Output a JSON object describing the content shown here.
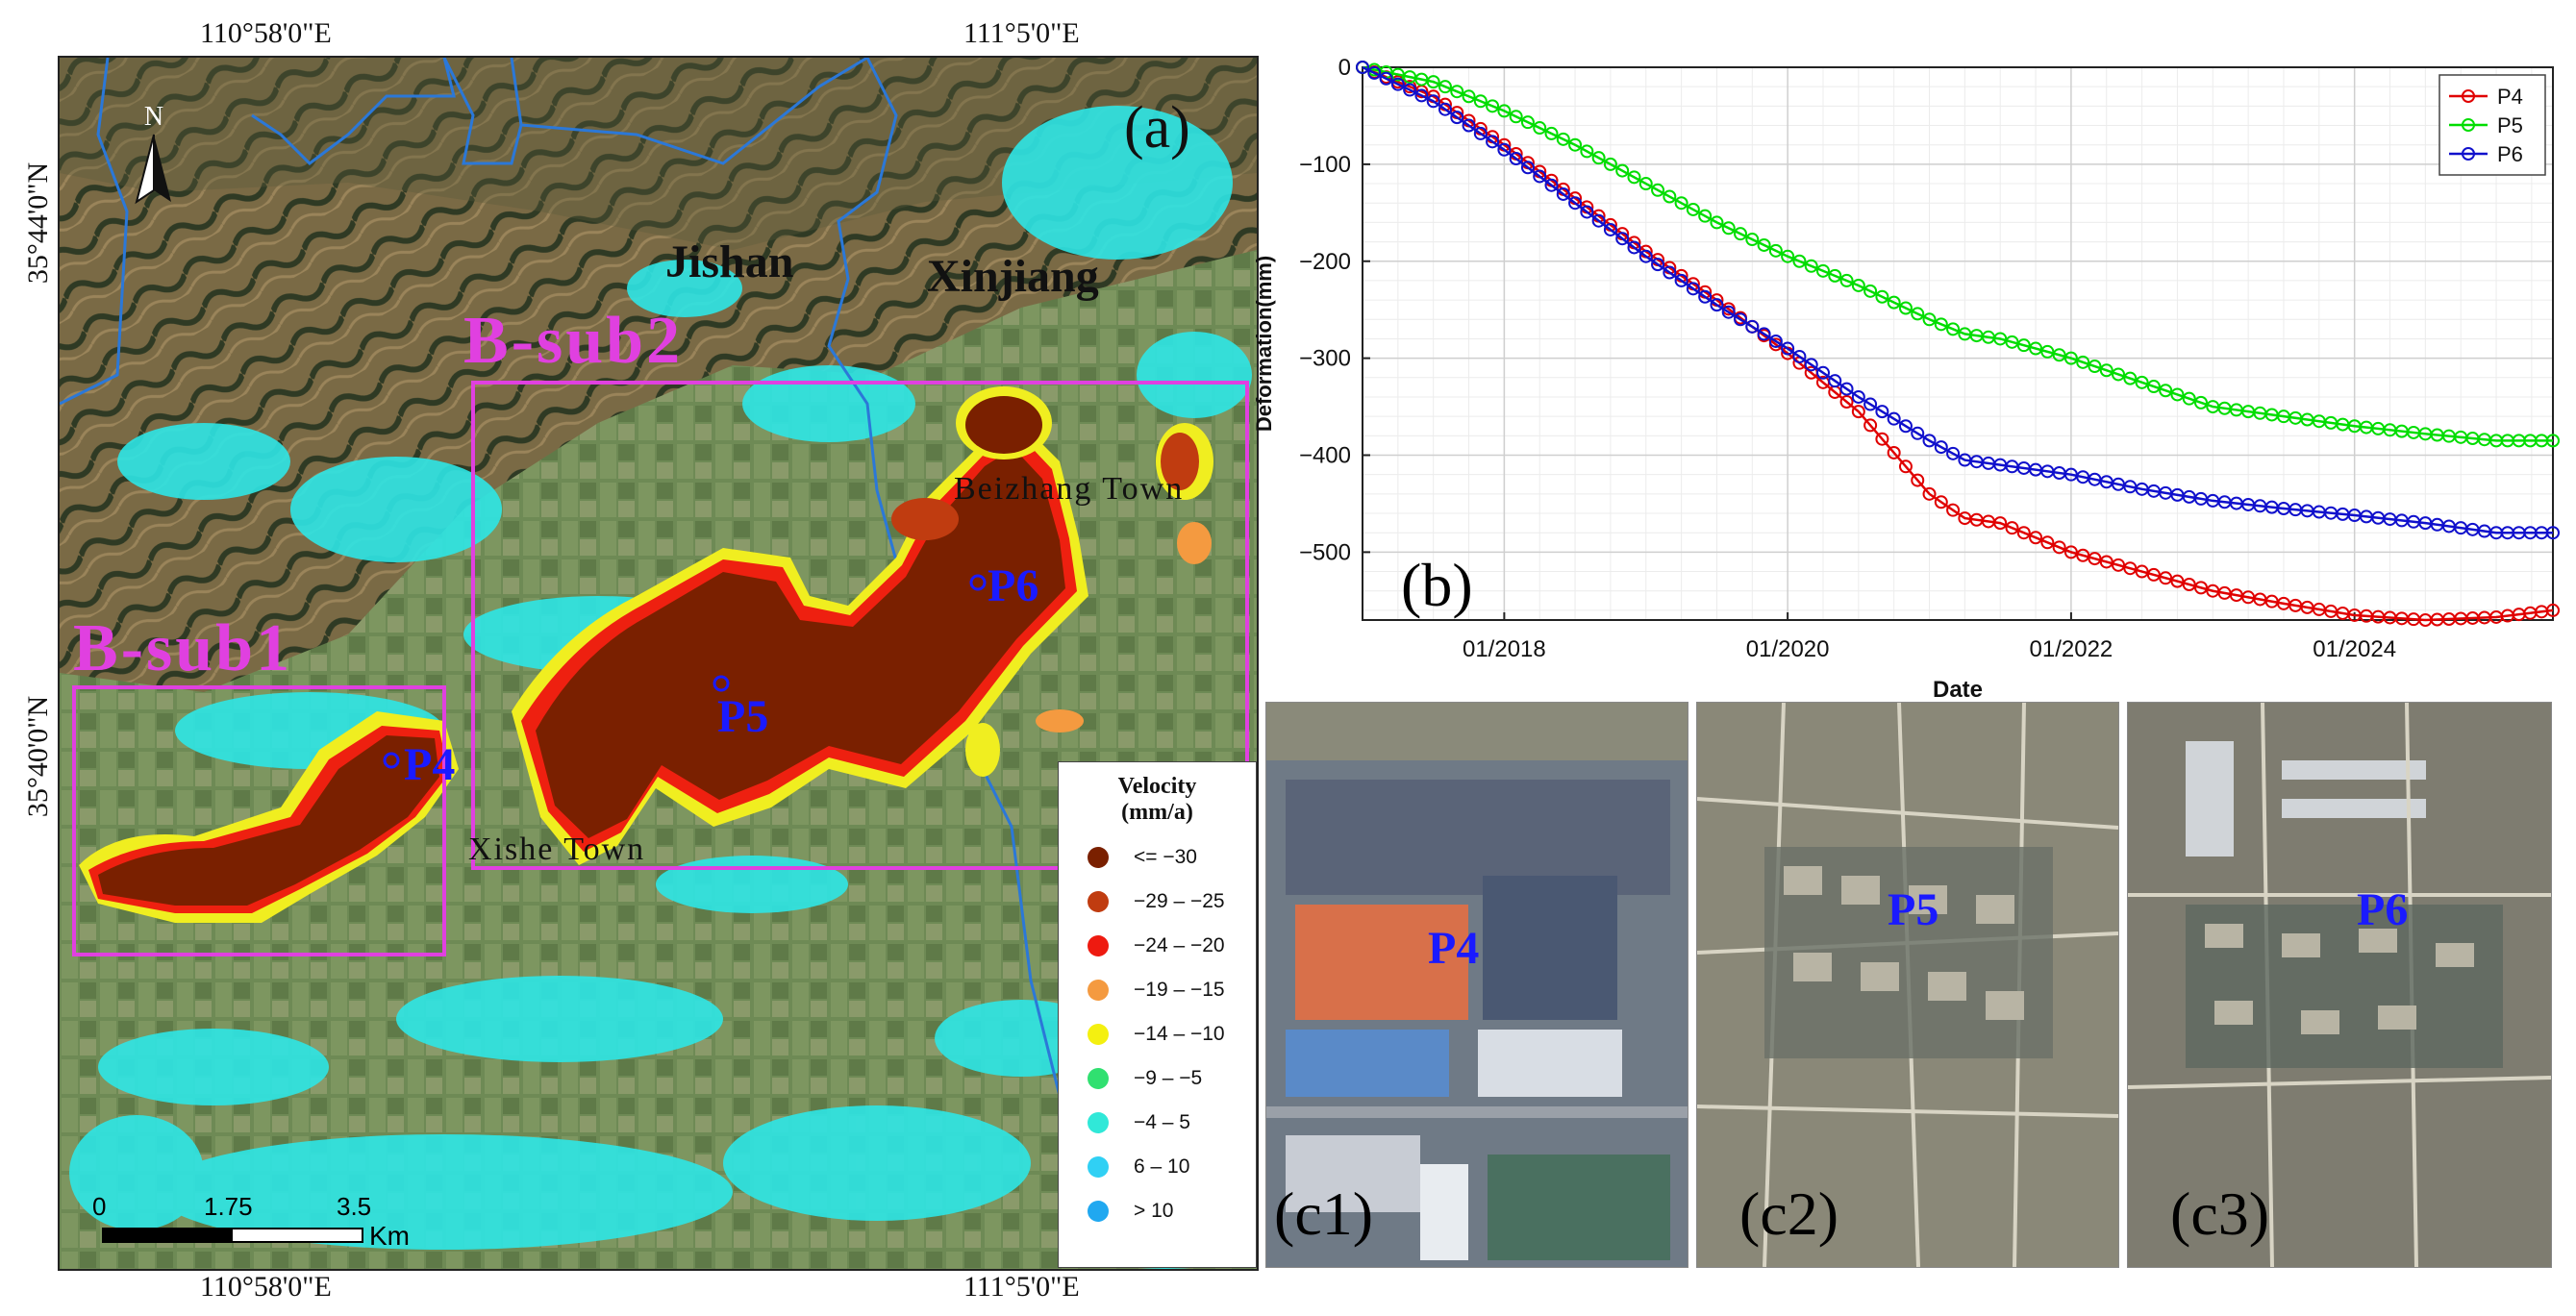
{
  "map": {
    "panel_label": "(a)",
    "north_label": "N",
    "coords": {
      "top_left_lon": "110°58'0\"E",
      "top_right_lon": "111°5'0\"E",
      "bottom_left_lon": "110°58'0\"E",
      "bottom_right_lon": "111°5'0\"E",
      "upper_lat": "35°44'0\"N",
      "lower_lat": "35°40'0\"N"
    },
    "places": {
      "jishan": "Jishan",
      "xinjiang": "Xinjiang",
      "beizhang": "Beizhang Town",
      "xishe": "Xishe Town"
    },
    "subareas": {
      "sub1": "B-sub1",
      "sub2": "B-sub2"
    },
    "points": {
      "p4": "P4",
      "p5": "P5",
      "p6": "P6"
    },
    "scalebar": {
      "t0": "0",
      "t1": "1.75",
      "t2": "3.5",
      "unit": "Km"
    },
    "legend": {
      "title_line1": "Velocity",
      "title_line2": "(mm/a)",
      "items": [
        {
          "label": "<= −30",
          "color": "#7a2000"
        },
        {
          "label": "−29 – −25",
          "color": "#c03c10"
        },
        {
          "label": "−24 – −20",
          "color": "#ee1a10"
        },
        {
          "label": "−19 – −15",
          "color": "#f49a40"
        },
        {
          "label": "−14 – −10",
          "color": "#f4f010"
        },
        {
          "label": "−9 – −5",
          "color": "#30e070"
        },
        {
          "label": "−4 – 5",
          "color": "#30e8d8"
        },
        {
          "label": "6 – 10",
          "color": "#30d0f4"
        },
        {
          "label": "> 10",
          "color": "#20a8f0"
        }
      ]
    }
  },
  "chart_data": {
    "type": "line",
    "panel_label": "(b)",
    "title": "",
    "xlabel": "Date",
    "ylabel": "Deformation(mm)",
    "xlim": [
      2017.0,
      2025.4
    ],
    "ylim": [
      -570,
      0
    ],
    "x_ticks": [
      2018,
      2020,
      2022,
      2024
    ],
    "x_tick_labels": [
      "01/2018",
      "01/2020",
      "01/2022",
      "01/2024"
    ],
    "y_ticks": [
      0,
      -100,
      -200,
      -300,
      -400,
      -500
    ],
    "y_tick_labels": [
      "0",
      "−100",
      "−200",
      "−300",
      "−400",
      "−500"
    ],
    "grid": true,
    "legend_position": "top-right",
    "x": [
      2017.0,
      2017.5,
      2018.0,
      2018.5,
      2019.0,
      2019.5,
      2020.0,
      2020.5,
      2021.0,
      2021.25,
      2021.5,
      2022.0,
      2022.5,
      2023.0,
      2023.5,
      2024.0,
      2024.5,
      2025.0,
      2025.4
    ],
    "series": [
      {
        "name": "P4",
        "color": "#e00000",
        "values": [
          0,
          -30,
          -80,
          -135,
          -190,
          -240,
          -295,
          -355,
          -440,
          -465,
          -470,
          -500,
          -520,
          -540,
          -553,
          -565,
          -570,
          -567,
          -560
        ]
      },
      {
        "name": "P5",
        "color": "#00dd00",
        "values": [
          0,
          -15,
          -45,
          -80,
          -120,
          -160,
          -195,
          -225,
          -260,
          -275,
          -280,
          -300,
          -325,
          -350,
          -360,
          -370,
          -378,
          -385,
          -385
        ]
      },
      {
        "name": "P6",
        "color": "#1010cc",
        "values": [
          0,
          -35,
          -85,
          -140,
          -195,
          -245,
          -290,
          -340,
          -385,
          -405,
          -410,
          -420,
          -435,
          -447,
          -455,
          -462,
          -470,
          -480,
          -480
        ]
      }
    ]
  },
  "photos": [
    {
      "label": "(c1)",
      "point": "P4"
    },
    {
      "label": "(c2)",
      "point": "P5"
    },
    {
      "label": "(c3)",
      "point": "P6"
    }
  ]
}
